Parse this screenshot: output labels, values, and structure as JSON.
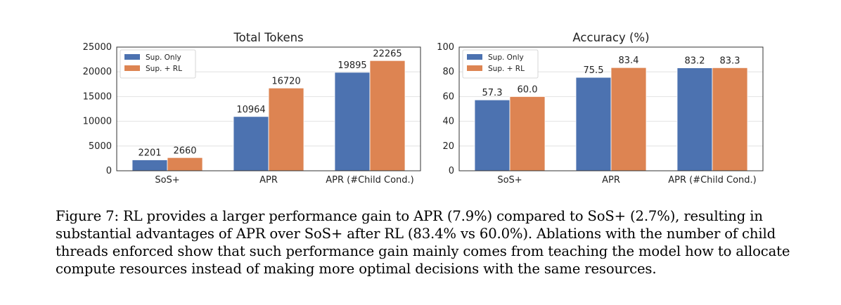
{
  "chart_data": [
    {
      "type": "bar",
      "title": "Total Tokens",
      "categories": [
        "SoS+",
        "APR",
        "APR (#Child Cond.)"
      ],
      "series": [
        {
          "name": "Sup. Only",
          "values": [
            2201,
            10964,
            19895
          ],
          "color": "#4c72b0"
        },
        {
          "name": "Sup. + RL",
          "values": [
            2660,
            16720,
            22265
          ],
          "color": "#dd8452"
        }
      ],
      "data_labels": [
        [
          "2201",
          "10964",
          "19895"
        ],
        [
          "2660",
          "16720",
          "22265"
        ]
      ],
      "ylim": [
        0,
        25000
      ],
      "yticks": [
        0,
        5000,
        10000,
        15000,
        20000,
        25000
      ],
      "ytick_labels": [
        "0",
        "5000",
        "10000",
        "15000",
        "20000",
        "25000"
      ],
      "grid": true,
      "legend_position": "top-left"
    },
    {
      "type": "bar",
      "title": "Accuracy (%)",
      "categories": [
        "SoS+",
        "APR",
        "APR (#Child Cond.)"
      ],
      "series": [
        {
          "name": "Sup. Only",
          "values": [
            57.3,
            75.5,
            83.2
          ],
          "color": "#4c72b0"
        },
        {
          "name": "Sup. + RL",
          "values": [
            60.0,
            83.4,
            83.3
          ],
          "color": "#dd8452"
        }
      ],
      "data_labels": [
        [
          "57.3",
          "75.5",
          "83.2"
        ],
        [
          "60.0",
          "83.4",
          "83.3"
        ]
      ],
      "ylim": [
        0,
        100
      ],
      "yticks": [
        0,
        20,
        40,
        60,
        80,
        100
      ],
      "ytick_labels": [
        "0",
        "20",
        "40",
        "60",
        "80",
        "100"
      ],
      "grid": true,
      "legend_position": "top-left"
    }
  ],
  "caption": {
    "label": "Figure 7:",
    "text": " RL provides a larger performance gain to APR (7.9%) compared to SoS+ (2.7%), resulting in substantial advantages of APR over SoS+ after RL (83.4% vs 60.0%). Ablations with the number of child threads enforced show that such performance gain mainly comes from teaching the model how to allocate compute resources instead of making more optimal decisions with the same resources."
  }
}
